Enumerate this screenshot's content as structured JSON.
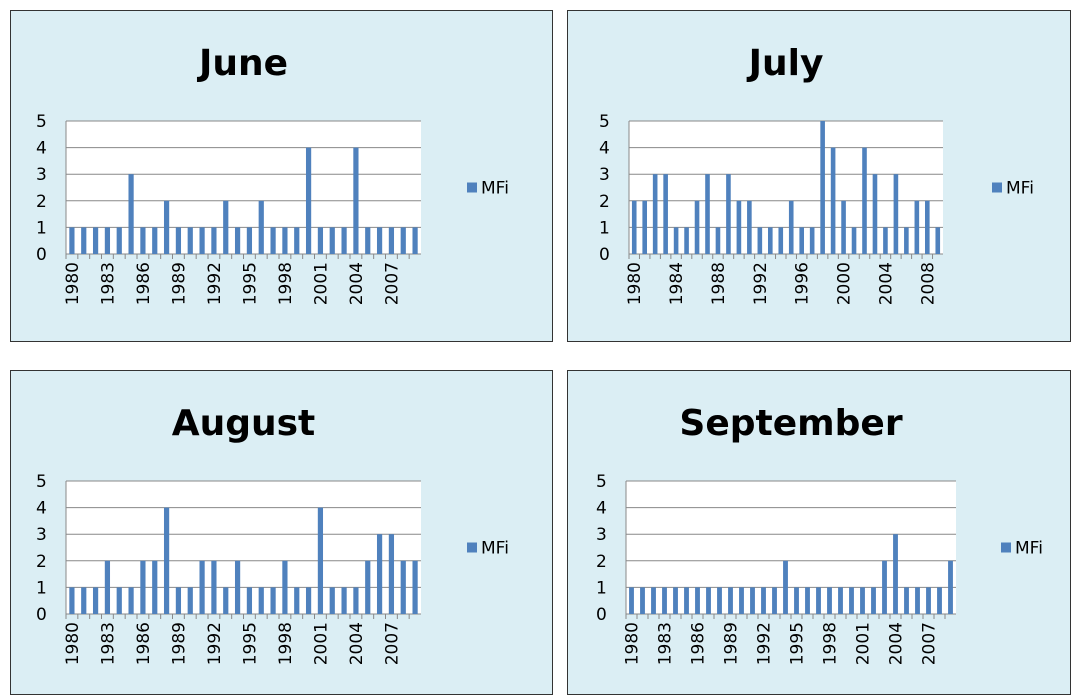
{
  "chart_data": [
    {
      "type": "bar",
      "title": "June",
      "categories": [
        "1980",
        null,
        null,
        "1983",
        null,
        null,
        "1986",
        null,
        null,
        "1989",
        null,
        null,
        "1992",
        null,
        null,
        "1995",
        null,
        null,
        "1998",
        null,
        null,
        "2001",
        null,
        null,
        "2004",
        null,
        null,
        "2007",
        null,
        null
      ],
      "series": [
        {
          "name": "MFi",
          "color": "#4f81bd",
          "values": [
            1,
            1,
            1,
            1,
            1,
            3,
            1,
            1,
            2,
            1,
            1,
            1,
            1,
            2,
            1,
            1,
            2,
            1,
            1,
            1,
            4,
            1,
            1,
            1,
            4,
            1,
            1,
            1,
            1,
            1
          ]
        }
      ],
      "ylim": [
        0,
        5
      ],
      "yticks": [
        0,
        1,
        2,
        3,
        4,
        5
      ],
      "grid": true,
      "legend": "right"
    },
    {
      "type": "bar",
      "title": "July",
      "categories": [
        "1980",
        null,
        null,
        null,
        "1984",
        null,
        null,
        null,
        "1988",
        null,
        null,
        null,
        "1992",
        null,
        null,
        null,
        "1996",
        null,
        null,
        null,
        "2000",
        null,
        null,
        null,
        "2004",
        null,
        null,
        null,
        "2008",
        null
      ],
      "series": [
        {
          "name": "MFi",
          "color": "#4f81bd",
          "values": [
            2,
            2,
            3,
            3,
            1,
            1,
            2,
            3,
            1,
            3,
            2,
            2,
            1,
            1,
            1,
            2,
            1,
            1,
            5,
            4,
            2,
            1,
            4,
            3,
            1,
            3,
            1,
            2,
            2,
            1
          ]
        }
      ],
      "ylim": [
        0,
        5
      ],
      "yticks": [
        0,
        1,
        2,
        3,
        4,
        5
      ],
      "grid": true,
      "legend": "right"
    },
    {
      "type": "bar",
      "title": "August",
      "categories": [
        "1980",
        null,
        null,
        "1983",
        null,
        null,
        "1986",
        null,
        null,
        "1989",
        null,
        null,
        "1992",
        null,
        null,
        "1995",
        null,
        null,
        "1998",
        null,
        null,
        "2001",
        null,
        null,
        "2004",
        null,
        null,
        "2007",
        null,
        null
      ],
      "series": [
        {
          "name": "MFi",
          "color": "#4f81bd",
          "values": [
            1,
            1,
            1,
            2,
            1,
            1,
            2,
            2,
            4,
            1,
            1,
            2,
            2,
            1,
            2,
            1,
            1,
            1,
            2,
            1,
            1,
            4,
            1,
            1,
            1,
            2,
            3,
            3,
            2,
            2
          ]
        }
      ],
      "ylim": [
        0,
        5
      ],
      "yticks": [
        0,
        1,
        2,
        3,
        4,
        5
      ],
      "grid": true,
      "legend": "right"
    },
    {
      "type": "bar",
      "title": "September",
      "categories": [
        "1980",
        null,
        null,
        "1983",
        null,
        null,
        "1986",
        null,
        null,
        "1989",
        null,
        null,
        "1992",
        null,
        null,
        "1995",
        null,
        null,
        "1998",
        null,
        null,
        "2001",
        null,
        null,
        "2004",
        null,
        null,
        "2007",
        null,
        null
      ],
      "series": [
        {
          "name": "MFi",
          "color": "#4f81bd",
          "values": [
            1,
            1,
            1,
            1,
            1,
            1,
            1,
            1,
            1,
            1,
            1,
            1,
            1,
            1,
            2,
            1,
            1,
            1,
            1,
            1,
            1,
            1,
            1,
            2,
            3,
            1,
            1,
            1,
            1,
            2
          ]
        }
      ],
      "ylim": [
        0,
        5
      ],
      "yticks": [
        0,
        1,
        2,
        3,
        4,
        5
      ],
      "grid": true,
      "legend": "right"
    }
  ]
}
